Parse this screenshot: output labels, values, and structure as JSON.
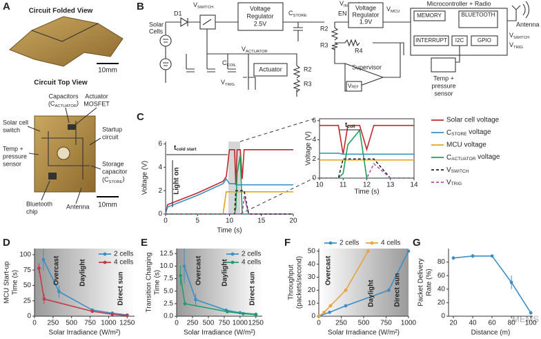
{
  "panel_labels": [
    "A",
    "B",
    "C",
    "D",
    "E",
    "F",
    "G"
  ],
  "panel_a": {
    "folded_title": "Circuit Folded View",
    "folded_scale": "10mm",
    "top_title": "Circuit Top View",
    "capacitors": [
      "Capacitors",
      {
        "main": "(C",
        "sub": "ACTUATOR",
        "tail": ")"
      }
    ],
    "actuator": [
      "Actuator",
      "MOSFET"
    ],
    "solar_switch": [
      "Solar cell",
      "switch"
    ],
    "startup": [
      "Startup",
      "circuit"
    ],
    "sensor": [
      "Temp +",
      "pressure",
      "sensor"
    ],
    "storage": [
      "Storage",
      "capacitor",
      {
        "main": "(C",
        "sub": "STORE",
        "tail": ")"
      }
    ],
    "bluetooth": [
      "Bluetooth",
      "chip"
    ],
    "antenna": "Antenna",
    "top_scale": "10mm"
  },
  "panel_b": {
    "solar_cells": [
      "Solar",
      "Cells"
    ],
    "d1": "D1",
    "v_switch": {
      "main": "V",
      "sub": "SWITCH"
    },
    "reg1": [
      "Voltage",
      "Regulator",
      "2.5V"
    ],
    "c_store": {
      "main": "C",
      "sub": "STORE"
    },
    "v_in": {
      "main": "V",
      "sub": "IN"
    },
    "en": "EN",
    "reg2": [
      "Voltage",
      "Regulator",
      "1.9V"
    ],
    "v_mcu": {
      "main": "V",
      "sub": "MCU"
    },
    "r2": "R2",
    "r3": "R3",
    "r4": "R4",
    "mcu": "Microcontroller + Radio",
    "memory": "MEMORY",
    "bluetooth": "BLUETOOTH",
    "interrupt": "INTERRUPT",
    "i2c": "I2C",
    "gpio": "GPIO",
    "gpio_v_switch": {
      "main": "V",
      "sub": "SWITCH"
    },
    "gpio_v_trig": {
      "main": "V",
      "sub": "TRIG"
    },
    "antenna": "Antenna",
    "sensor": [
      "Temp +",
      "pressure",
      "sensor"
    ],
    "v_actuator": {
      "main": "V",
      "sub": "ACTUATOR"
    },
    "c_coil": {
      "main": "C",
      "sub": "COIL"
    },
    "actuator": "Actuator",
    "v_trig": {
      "main": "V",
      "sub": "TRIG"
    },
    "r2b": "R2",
    "r3b": "R3",
    "supervisor": "Supervisor",
    "v_ref": {
      "main": "V",
      "sub": "REF"
    }
  },
  "watermark": "MEMS",
  "chart_data": [
    {
      "type": "line",
      "x_label": "Time (s)",
      "y_label": "Voltage (V)",
      "xlim": [
        0,
        20
      ],
      "xticks": [
        0,
        5,
        10,
        15,
        20
      ],
      "ylim": [
        0,
        6.2
      ],
      "yticks": [
        0,
        2,
        4,
        6
      ],
      "legend": "right",
      "markers": false,
      "annotations": [
        {
          "main": "t",
          "sub": "cold start"
        },
        "Light on"
      ],
      "x": [
        0,
        0.3,
        5,
        9,
        9.5,
        10,
        10.8,
        11,
        11.2,
        11.7,
        12,
        12.3,
        13,
        15,
        20
      ],
      "series": [
        {
          "name": "Solar cell voltage",
          "color": "#c0272d",
          "values": [
            0,
            0.8,
            1.8,
            2.8,
            3.2,
            5.5,
            5.5,
            2.5,
            5.5,
            5.5,
            3,
            5.5,
            5.5,
            5.5,
            5.5
          ]
        },
        {
          "name": {
            "main": "C",
            "sub": "STORE",
            "tail": " voltage"
          },
          "color": "#3a8fc9",
          "values": [
            0,
            0.6,
            1.6,
            2.6,
            3,
            2.6,
            2.6,
            2.5,
            2.5,
            2.5,
            2.5,
            2.5,
            2.5,
            2.5,
            2.5
          ]
        },
        {
          "name": "MCU voltage",
          "color": "#e8a317",
          "values": [
            0,
            0,
            0,
            0,
            1.9,
            1.9,
            1.9,
            1.9,
            1.9,
            1.9,
            1.9,
            1.9,
            1.9,
            1.9,
            1.9
          ]
        },
        {
          "name": {
            "main": "C",
            "sub": "ACTUATOR",
            "tail": " voltage"
          },
          "color": "#1f9e5a",
          "values": [
            0,
            0,
            0,
            0,
            0,
            0,
            0,
            0.5,
            3.5,
            5,
            0,
            0,
            0,
            0,
            0
          ]
        },
        {
          "name": {
            "main": "V",
            "sub": "SWITCH"
          },
          "color": "#222222",
          "dash": true,
          "values": [
            0,
            0,
            0,
            0,
            0,
            0,
            0,
            2,
            2,
            2,
            2,
            2,
            0,
            0,
            0
          ]
        },
        {
          "name": {
            "main": "V",
            "sub": "TRIG"
          },
          "color": "#b44fb4",
          "dash": true,
          "values": [
            0,
            0,
            0,
            0,
            0,
            0,
            0,
            0,
            0,
            0,
            0,
            1.5,
            0,
            0,
            0
          ]
        }
      ],
      "inset": {
        "xlim": [
          10,
          14
        ],
        "xticks": [
          10,
          11,
          12,
          13,
          14
        ],
        "ylim": [
          0,
          6.2
        ],
        "yticks": [
          0,
          2,
          4,
          6
        ],
        "x_label": "Time (s)",
        "y_label": "Voltage (V)",
        "annotations": [
          {
            "main": "t",
            "sub": "coil"
          }
        ]
      }
    },
    {
      "type": "line",
      "x_label": "Solar Irradiance (W/m²)",
      "y_label": [
        "MCU Start-up",
        "Time (s)"
      ],
      "xlim": [
        0,
        1350
      ],
      "xticks": [
        0,
        250,
        500,
        750,
        1000,
        1250
      ],
      "ylim": [
        0,
        110
      ],
      "yticks": [
        0,
        25,
        50,
        75,
        100
      ],
      "shading": "left",
      "legend": "upper right",
      "markers": true,
      "annotations": [
        "Overcast",
        "Daylight",
        "Direct sun"
      ],
      "series": [
        {
          "name": "2 cells",
          "color": "#3b8fc4",
          "x": [
            120,
            330,
            780,
            1050,
            1250
          ],
          "values": [
            92,
            40,
            10,
            5,
            2
          ],
          "errors": [
            18,
            10,
            3,
            2,
            1
          ]
        },
        {
          "name": "4 cells",
          "color": "#c43a48",
          "x": [
            60,
            130,
            780,
            1050,
            1250
          ],
          "values": [
            78,
            28,
            8,
            3,
            1
          ],
          "errors": [
            8,
            8,
            2,
            1,
            1
          ]
        }
      ]
    },
    {
      "type": "line",
      "x_label": "Solar Irradiance (W/m²)",
      "y_label": [
        "Transition Charging",
        "Time (s)"
      ],
      "xlim": [
        0,
        1350
      ],
      "xticks": [
        0,
        250,
        500,
        750,
        1000,
        1250
      ],
      "ylim": [
        0,
        13.5
      ],
      "yticks": [
        {
          "value": 0,
          "label": "0.0"
        },
        {
          "value": 2.5,
          "label": "2.5"
        },
        {
          "value": 5,
          "label": "5.0"
        },
        {
          "value": 7.5,
          "label": "7.5"
        },
        {
          "value": 10,
          "label": "10.0"
        },
        {
          "value": 12.5,
          "label": "12.5"
        }
      ],
      "shading": "left",
      "legend": "upper right",
      "markers": true,
      "annotations": [
        "Overcast",
        "Daylight",
        "Direct sun"
      ],
      "series": [
        {
          "name": "2 cells",
          "color": "#3b8fc4",
          "x": [
            120,
            300,
            780,
            1000,
            1250
          ],
          "values": [
            10,
            3.3,
            1.2,
            0.7,
            0.4
          ],
          "errors": [
            3.5,
            1.2,
            0.3,
            0.2,
            0.1
          ]
        },
        {
          "name": "4 cells",
          "color": "#1f9e6a",
          "x": [
            60,
            130,
            800,
            1050,
            1250
          ],
          "values": [
            8.1,
            2.5,
            0.9,
            0.5,
            0.3
          ],
          "errors": [
            2,
            0.4,
            0.2,
            0.1,
            0.1
          ]
        }
      ]
    },
    {
      "type": "line",
      "x_label": "Solar Irradiance (W/m²)",
      "y_label": [
        "Throughput",
        "(packets/second)"
      ],
      "xlim": [
        0,
        1000
      ],
      "xticks": [
        0,
        250,
        500,
        750,
        1000
      ],
      "ylim": [
        0,
        52
      ],
      "yticks": [
        0,
        10,
        20,
        30,
        40,
        50
      ],
      "shading": "right",
      "legend": "top",
      "markers": true,
      "annotations": [
        "Overcast",
        "Daylight",
        "Direct sun"
      ],
      "series": [
        {
          "name": "2 cells",
          "color": "#3b8fc4",
          "x": [
            0,
            120,
            300,
            780,
            1000
          ],
          "values": [
            0,
            3,
            8,
            20,
            50
          ]
        },
        {
          "name": "4 cells",
          "color": "#e8a33a",
          "x": [
            0,
            60,
            130,
            300,
            550
          ],
          "values": [
            0,
            3,
            8,
            20,
            50
          ]
        }
      ]
    },
    {
      "type": "line",
      "x_label": "Distance (m)",
      "y_label": [
        "Packet Delivery",
        "Rate (%)"
      ],
      "xlim": [
        15,
        102
      ],
      "xticks": [
        20,
        40,
        60,
        80,
        100
      ],
      "ylim": [
        0,
        100
      ],
      "yticks": [
        0,
        20,
        40,
        60,
        80
      ],
      "markers": true,
      "series": [
        {
          "color": "#3b8fc4",
          "x": [
            20,
            40,
            60,
            80,
            100
          ],
          "values": [
            86,
            89,
            89,
            50,
            5
          ],
          "errors": [
            3,
            3,
            2,
            10,
            3
          ]
        }
      ]
    }
  ]
}
